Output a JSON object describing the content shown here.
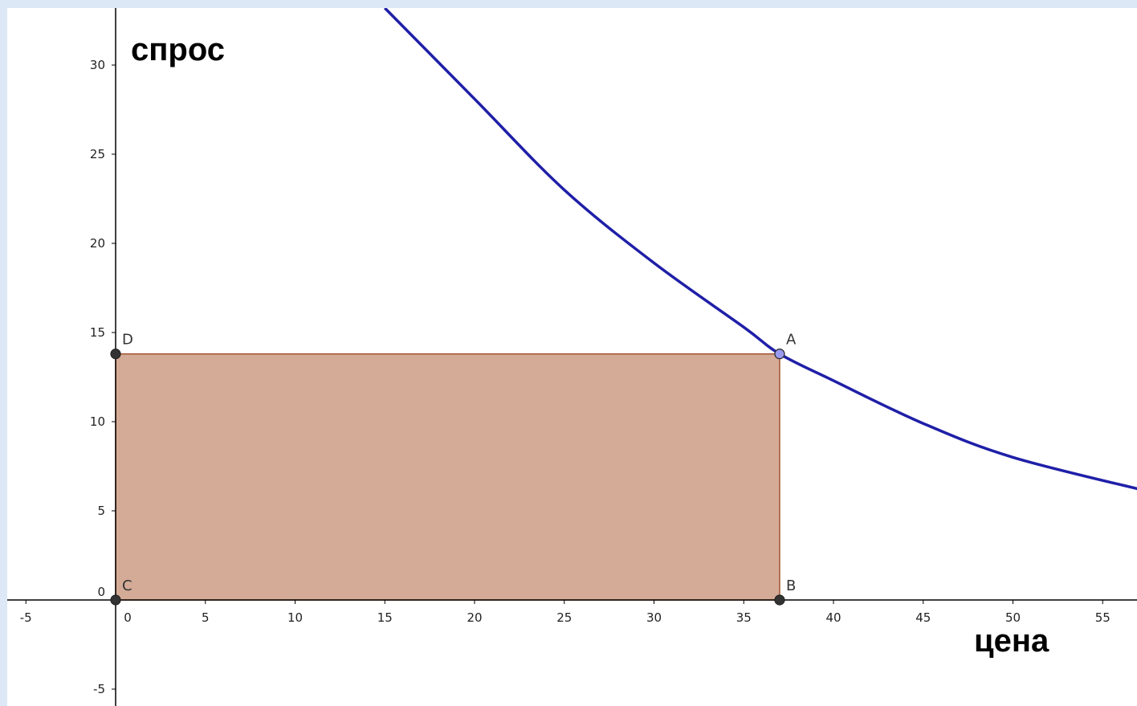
{
  "chart_data": {
    "type": "line",
    "xlabel": "цена",
    "ylabel": "спрос",
    "xlim": [
      -6.1,
      57.5
    ],
    "ylim": [
      -5.9,
      33.2
    ],
    "x_ticks": [
      -5,
      0,
      5,
      10,
      15,
      20,
      25,
      30,
      35,
      40,
      45,
      50,
      55
    ],
    "y_ticks": [
      -5,
      0,
      5,
      10,
      15,
      20,
      25,
      30
    ],
    "series": [
      {
        "color": "#1f1fa8",
        "x": [
          15,
          20,
          25,
          30,
          35,
          37,
          40,
          45,
          50,
          57.5
        ],
        "y": [
          33.2,
          28.1,
          23.0,
          18.9,
          15.3,
          13.8,
          12.3,
          9.9,
          8.0,
          6.1
        ]
      }
    ],
    "rectangle": {
      "fill": "#d4ab97",
      "stroke": "#a0522d",
      "vertices": [
        "A",
        "B",
        "C",
        "D"
      ]
    },
    "points": [
      {
        "label": "A",
        "x": 37,
        "y": 13.8,
        "color": "#9a9aef"
      },
      {
        "label": "B",
        "x": 37,
        "y": 0,
        "color": "#333333"
      },
      {
        "label": "C",
        "x": 0,
        "y": 0,
        "color": "#333333"
      },
      {
        "label": "D",
        "x": 0,
        "y": 13.8,
        "color": "#333333"
      }
    ]
  }
}
